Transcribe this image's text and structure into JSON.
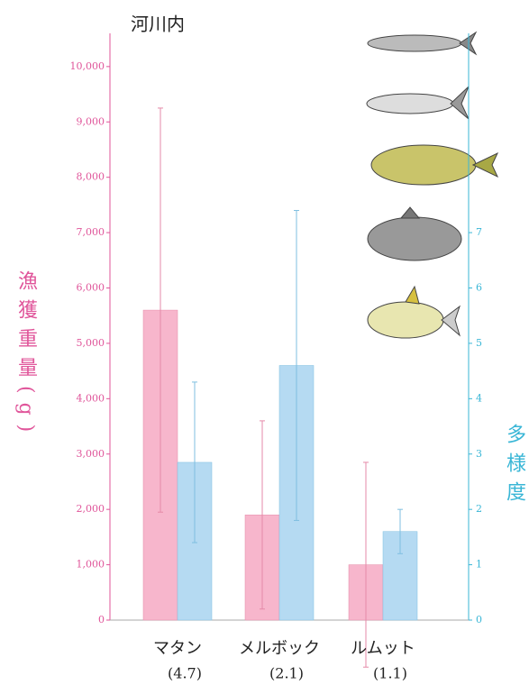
{
  "chart_data": {
    "type": "bar",
    "title": "河川内",
    "ylabel": "漁獲重量(g)",
    "y2label": "多様度",
    "categories": [
      "マタン",
      "メルボック",
      "ルムット"
    ],
    "category_sublabels": [
      "(4.7)",
      "(2.1)",
      "(1.1)"
    ],
    "series": [
      {
        "color": "#f7b6cc",
        "error_color": "#e58aa8",
        "values": [
          5600,
          1900,
          1000
        ],
        "errors": [
          3650,
          1700,
          1850
        ]
      },
      {
        "color": "#b5daf2",
        "error_color": "#7fbfe0",
        "axis": "y2",
        "values": [
          2.85,
          4.6,
          1.6
        ],
        "errors": [
          1.45,
          2.8,
          0.4
        ]
      }
    ],
    "ylim": [
      0,
      10600
    ],
    "yticks": [
      0,
      {
        "value": 1000,
        "label": "1,000"
      },
      {
        "value": 2000,
        "label": "2,000"
      },
      {
        "value": 3000,
        "label": "3,000"
      },
      {
        "value": 4000,
        "label": "4,000"
      },
      {
        "value": 5000,
        "label": "5,000"
      },
      {
        "value": 6000,
        "label": "6,000"
      },
      {
        "value": 7000,
        "label": "7,000"
      },
      {
        "value": 8000,
        "label": "8,000"
      },
      {
        "value": 9000,
        "label": "9,000"
      },
      {
        "value": 10000,
        "label": "10,000"
      }
    ],
    "y2lim": [
      0,
      10.6
    ],
    "y2ticks": [
      0,
      1,
      2,
      3,
      4,
      5,
      6,
      7
    ],
    "left_axis_color": "#e0559a",
    "right_axis_color": "#39b6d6"
  }
}
